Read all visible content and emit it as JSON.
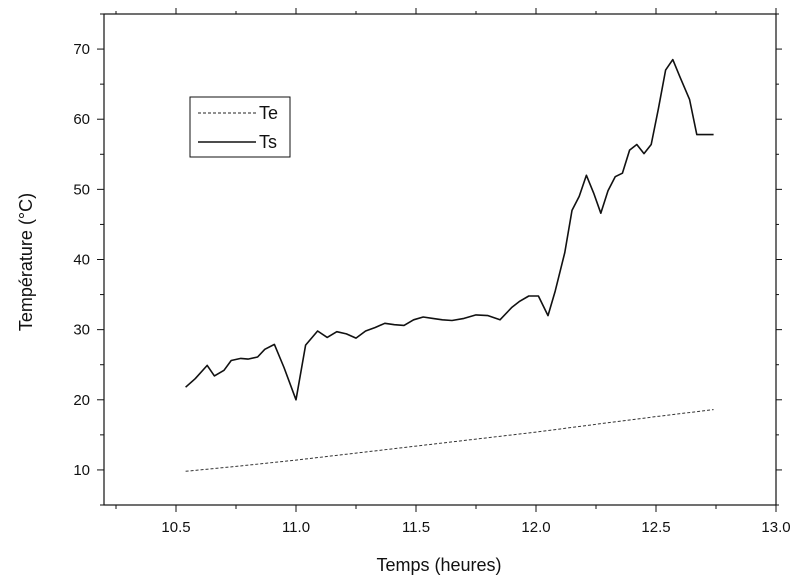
{
  "chart_data": {
    "type": "line",
    "xlabel": "Temps (heures)",
    "ylabel": "Température (°C)",
    "xlim": [
      10.2,
      13.0
    ],
    "ylim": [
      5,
      75
    ],
    "x_ticks": [
      "10.5",
      "11.0",
      "11.5",
      "12.0",
      "12.5",
      "13.0"
    ],
    "x_tick_values": [
      10.5,
      11.0,
      11.5,
      12.0,
      12.5,
      13.0
    ],
    "y_ticks": [
      "10",
      "20",
      "30",
      "40",
      "50",
      "60",
      "70"
    ],
    "y_tick_values": [
      10,
      20,
      30,
      40,
      50,
      60,
      70
    ],
    "grid": false,
    "legend_position": "top-left",
    "series": [
      {
        "name": "Te",
        "style": "dashed",
        "x": [
          10.54,
          10.75,
          11.0,
          11.25,
          11.5,
          11.75,
          12.0,
          12.25,
          12.5,
          12.74
        ],
        "y": [
          9.8,
          10.5,
          11.4,
          12.4,
          13.4,
          14.4,
          15.4,
          16.5,
          17.6,
          18.6
        ]
      },
      {
        "name": "Ts",
        "style": "solid",
        "x": [
          10.54,
          10.58,
          10.63,
          10.66,
          10.7,
          10.73,
          10.77,
          10.8,
          10.84,
          10.87,
          10.91,
          10.95,
          11.0,
          11.04,
          11.09,
          11.13,
          11.17,
          11.21,
          11.25,
          11.29,
          11.33,
          11.37,
          11.41,
          11.45,
          11.49,
          11.53,
          11.57,
          11.61,
          11.65,
          11.7,
          11.75,
          11.8,
          11.85,
          11.9,
          11.93,
          11.97,
          12.01,
          12.05,
          12.08,
          12.12,
          12.15,
          12.18,
          12.21,
          12.24,
          12.27,
          12.3,
          12.33,
          12.36,
          12.39,
          12.42,
          12.45,
          12.48,
          12.51,
          12.54,
          12.57,
          12.6,
          12.64,
          12.67,
          12.7,
          12.74
        ],
        "y": [
          21.8,
          23.0,
          24.9,
          23.4,
          24.2,
          25.6,
          25.9,
          25.8,
          26.1,
          27.2,
          27.9,
          24.6,
          20.0,
          27.8,
          29.8,
          28.9,
          29.7,
          29.4,
          28.8,
          29.8,
          30.3,
          30.9,
          30.7,
          30.6,
          31.4,
          31.8,
          31.6,
          31.4,
          31.3,
          31.6,
          32.1,
          32.0,
          31.4,
          33.2,
          34.0,
          34.8,
          34.8,
          32.0,
          35.5,
          41.0,
          47.0,
          49.0,
          52.0,
          49.5,
          46.6,
          49.8,
          51.8,
          52.3,
          55.6,
          56.4,
          55.1,
          56.4,
          61.5,
          67.0,
          68.5,
          66.0,
          62.8,
          57.8,
          57.8,
          57.8
        ]
      }
    ]
  }
}
